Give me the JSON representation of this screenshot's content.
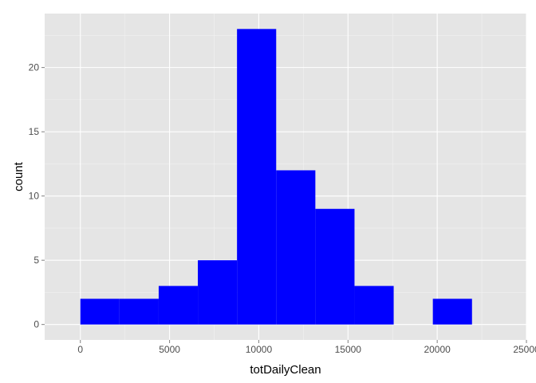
{
  "chart_data": {
    "type": "bar",
    "subtype": "histogram",
    "xlabel": "totDailyClean",
    "ylabel": "count",
    "xlim": [
      -2000,
      25000
    ],
    "ylim": [
      -1.2,
      24.2
    ],
    "x_ticks": [
      0,
      5000,
      10000,
      15000,
      20000,
      25000
    ],
    "y_ticks": [
      0,
      5,
      10,
      15,
      20
    ],
    "bin_width": 2195,
    "bins": [
      {
        "x0": 0,
        "x1": 2195,
        "count": 2
      },
      {
        "x0": 2195,
        "x1": 4390,
        "count": 2
      },
      {
        "x0": 4390,
        "x1": 6585,
        "count": 3
      },
      {
        "x0": 6585,
        "x1": 8780,
        "count": 5
      },
      {
        "x0": 8780,
        "x1": 10975,
        "count": 23
      },
      {
        "x0": 10975,
        "x1": 13170,
        "count": 12
      },
      {
        "x0": 13170,
        "x1": 15365,
        "count": 9
      },
      {
        "x0": 15365,
        "x1": 17560,
        "count": 3
      },
      {
        "x0": 17560,
        "x1": 19755,
        "count": 0
      },
      {
        "x0": 19755,
        "x1": 21950,
        "count": 2
      }
    ],
    "bar_color": "#0000ff",
    "panel_background": "#e5e5e5",
    "grid_color": "#ffffff",
    "grid": true,
    "legend": "none"
  }
}
